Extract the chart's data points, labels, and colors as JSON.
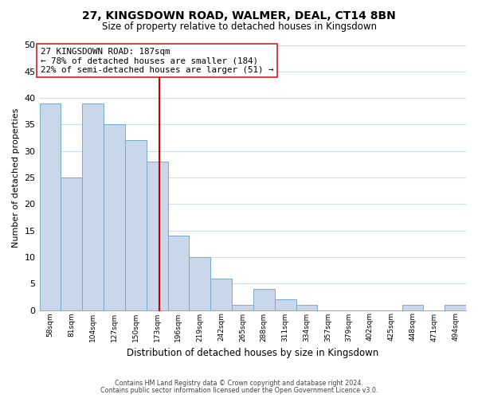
{
  "title": "27, KINGSDOWN ROAD, WALMER, DEAL, CT14 8BN",
  "subtitle": "Size of property relative to detached houses in Kingsdown",
  "xlabel": "Distribution of detached houses by size in Kingsdown",
  "ylabel": "Number of detached properties",
  "bar_color": "#c8d8ea",
  "bar_edge_color": "#7aaac8",
  "grid_color": "#d0dde8",
  "ref_line_x": 187,
  "annotation_title": "27 KINGSDOWN ROAD: 187sqm",
  "annotation_line1": "← 78% of detached houses are smaller (184)",
  "annotation_line2": "22% of semi-detached houses are larger (51) →",
  "bin_edges": [
    58,
    81,
    104,
    127,
    150,
    173,
    196,
    219,
    242,
    265,
    288,
    311,
    334,
    357,
    379,
    402,
    425,
    448,
    471,
    494,
    517
  ],
  "bin_counts": [
    39,
    25,
    39,
    35,
    32,
    28,
    14,
    10,
    6,
    1,
    4,
    2,
    1,
    0,
    0,
    0,
    0,
    1,
    0,
    1
  ],
  "ylim": [
    0,
    50
  ],
  "yticks": [
    0,
    5,
    10,
    15,
    20,
    25,
    30,
    35,
    40,
    45,
    50
  ],
  "footer1": "Contains HM Land Registry data © Crown copyright and database right 2024.",
  "footer2": "Contains public sector information licensed under the Open Government Licence v3.0."
}
